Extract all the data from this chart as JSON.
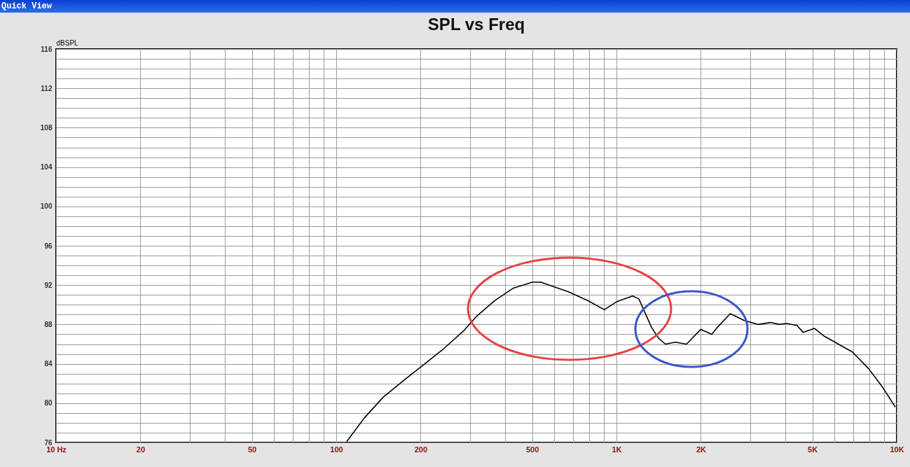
{
  "chart_data": {
    "type": "line",
    "title": "SPL vs Freq",
    "ylabel": "dBSPL",
    "annotations": [
      "Quick View"
    ],
    "xlim": [
      10,
      10000
    ],
    "ylim": [
      76,
      116
    ],
    "log": "x",
    "grid": true,
    "xticks": [
      {
        "value": 10,
        "label": "10 Hz"
      },
      20,
      {
        "value": 30,
        "label": null
      },
      {
        "value": 40,
        "label": null
      },
      50,
      {
        "value": 60,
        "label": null
      },
      {
        "value": 70,
        "label": null
      },
      {
        "value": 80,
        "label": null
      },
      {
        "value": 90,
        "label": null
      },
      100,
      200,
      {
        "value": 300,
        "label": null
      },
      {
        "value": 400,
        "label": null
      },
      500,
      {
        "value": 600,
        "label": null
      },
      {
        "value": 700,
        "label": null
      },
      {
        "value": 800,
        "label": null
      },
      {
        "value": 900,
        "label": null
      },
      {
        "value": 1000,
        "label": "1K"
      },
      {
        "value": 2000,
        "label": "2K"
      },
      {
        "value": 3000,
        "label": null
      },
      {
        "value": 4000,
        "label": null
      },
      {
        "value": 5000,
        "label": "5K"
      },
      {
        "value": 6000,
        "label": null
      },
      {
        "value": 7000,
        "label": null
      },
      {
        "value": 8000,
        "label": null
      },
      {
        "value": 9000,
        "label": null
      },
      {
        "value": 10000,
        "label": "10K"
      }
    ],
    "yticks": [
      76,
      {
        "value": 77,
        "label": null
      },
      {
        "value": 78,
        "label": null
      },
      {
        "value": 79,
        "label": null
      },
      80,
      {
        "value": 81,
        "label": null
      },
      {
        "value": 82,
        "label": null
      },
      {
        "value": 83,
        "label": null
      },
      84,
      {
        "value": 85,
        "label": null
      },
      {
        "value": 86,
        "label": null
      },
      {
        "value": 87,
        "label": null
      },
      88,
      {
        "value": 89,
        "label": null
      },
      {
        "value": 90,
        "label": null
      },
      {
        "value": 91,
        "label": null
      },
      92,
      {
        "value": 93,
        "label": null
      },
      {
        "value": 94,
        "label": null
      },
      {
        "value": 95,
        "label": null
      },
      96,
      {
        "value": 97,
        "label": null
      },
      {
        "value": 98,
        "label": null
      },
      {
        "value": 99,
        "label": null
      },
      100,
      {
        "value": 101,
        "label": null
      },
      {
        "value": 102,
        "label": null
      },
      {
        "value": 103,
        "label": null
      },
      104,
      {
        "value": 105,
        "label": null
      },
      {
        "value": 106,
        "label": null
      },
      {
        "value": 107,
        "label": null
      },
      108,
      {
        "value": 109,
        "label": null
      },
      {
        "value": 110,
        "label": null
      },
      {
        "value": 111,
        "label": null
      },
      112,
      {
        "value": 113,
        "label": null
      },
      {
        "value": 114,
        "label": null
      },
      {
        "value": 115,
        "label": null
      },
      116
    ],
    "x": [
      109,
      126,
      147,
      174,
      207,
      241,
      286,
      316,
      367,
      429,
      501,
      537,
      676,
      794,
      905,
      1000,
      1141,
      1202,
      1334,
      1413,
      1496,
      1622,
      1778,
      2000,
      2188,
      2291,
      2547,
      2858,
      3206,
      3548,
      3811,
      4036,
      4406,
      4634,
      5093,
      5520,
      6194,
      6950,
      7943,
      8913,
      9886
    ],
    "series": [
      {
        "color": "#000000",
        "values": [
          76.1,
          78.5,
          80.6,
          82.3,
          84.0,
          85.5,
          87.4,
          88.8,
          90.4,
          91.7,
          92.3,
          92.3,
          91.3,
          90.4,
          89.5,
          90.3,
          90.9,
          90.6,
          87.7,
          86.6,
          86.0,
          86.2,
          86.0,
          87.5,
          87.0,
          87.7,
          89.1,
          88.4,
          88.0,
          88.2,
          88.0,
          88.1,
          87.9,
          87.2,
          87.6,
          86.8,
          86.0,
          85.2,
          83.5,
          81.6,
          79.6
        ]
      }
    ]
  }
}
